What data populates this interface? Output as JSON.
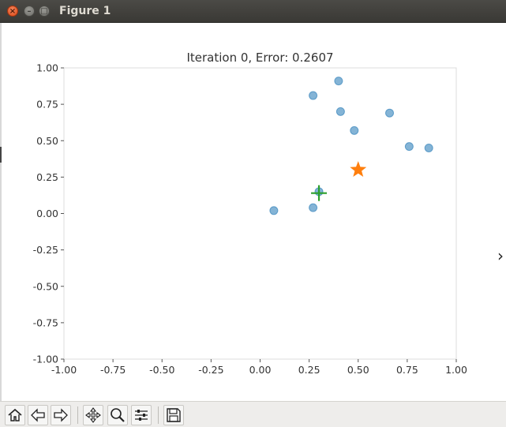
{
  "window": {
    "title": "Figure 1",
    "close_glyph": "×",
    "minimize_glyph": "–",
    "maximize_glyph": "□"
  },
  "chart_data": {
    "type": "scatter",
    "title": "Iteration 0, Error: 0.2607",
    "xlabel": "",
    "ylabel": "",
    "xlim": [
      -1.0,
      1.0
    ],
    "ylim": [
      -1.0,
      1.0
    ],
    "x_ticks": [
      "-1.00",
      "-0.75",
      "-0.50",
      "-0.25",
      "0.00",
      "0.25",
      "0.50",
      "0.75",
      "1.00"
    ],
    "y_ticks": [
      "1.00",
      "0.75",
      "0.50",
      "0.25",
      "0.00",
      "-0.25",
      "-0.50",
      "-0.75",
      "-1.00"
    ],
    "grid": false,
    "series": [
      {
        "marker": "circle",
        "color": "#1f77b4",
        "points": [
          [
            0.07,
            0.02
          ],
          [
            0.27,
            0.04
          ],
          [
            0.27,
            0.81
          ],
          [
            0.4,
            0.91
          ],
          [
            0.41,
            0.7
          ],
          [
            0.48,
            0.57
          ],
          [
            0.66,
            0.69
          ],
          [
            0.76,
            0.46
          ],
          [
            0.86,
            0.45
          ],
          [
            0.3,
            0.15
          ]
        ]
      },
      {
        "marker": "star",
        "color": "#ff7f0e",
        "points": [
          [
            0.5,
            0.3
          ]
        ]
      },
      {
        "marker": "plus",
        "color": "#2ca02c",
        "points": [
          [
            0.3,
            0.14
          ]
        ]
      }
    ]
  },
  "toolbar": {
    "buttons": [
      {
        "name": "home-button",
        "icon": "home-icon"
      },
      {
        "name": "back-button",
        "icon": "arrow-left-icon"
      },
      {
        "name": "forward-button",
        "icon": "arrow-right-icon"
      },
      {
        "name": "pan-button",
        "icon": "move-icon"
      },
      {
        "name": "zoom-button",
        "icon": "magnifier-icon"
      },
      {
        "name": "configure-subplots-button",
        "icon": "sliders-icon"
      },
      {
        "name": "save-button",
        "icon": "floppy-disk-icon"
      }
    ]
  },
  "side_glyph": "›"
}
